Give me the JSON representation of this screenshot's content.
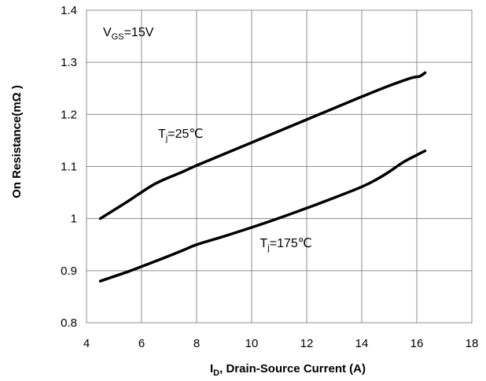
{
  "chart_data": {
    "type": "line",
    "title": "",
    "xlabel": {
      "main": "I",
      "sub": "D",
      "rest": ", Drain-Source Current (A)"
    },
    "ylabel": "On Resistance(mΩ )",
    "xlim": [
      4,
      18
    ],
    "ylim": [
      0.8,
      1.4
    ],
    "xticks": [
      4,
      6,
      8,
      10,
      12,
      14,
      16,
      18
    ],
    "yticks": [
      0.8,
      0.9,
      1.0,
      1.1,
      1.2,
      1.3,
      1.4
    ],
    "xtick_labels": [
      "4",
      "6",
      "8",
      "10",
      "12",
      "14",
      "16",
      "18"
    ],
    "ytick_labels": [
      "0.8",
      "0.9",
      "1",
      "1.1",
      "1.2",
      "1.3",
      "1.4"
    ],
    "grid": true,
    "annotations": [
      {
        "main": "V",
        "sub": "GS",
        "rest": "=15V",
        "x": 4.6,
        "y": 1.35
      },
      {
        "main": "T",
        "sub": "j",
        "rest": "=25℃",
        "x": 6.6,
        "y": 1.155
      },
      {
        "main": "T",
        "sub": "j",
        "rest": "=175℃",
        "x": 10.3,
        "y": 0.945
      }
    ],
    "series": [
      {
        "x": [
          4.5,
          5.5,
          6.5,
          7.5,
          8.0,
          9.0,
          10.0,
          11.0,
          12.0,
          13.0,
          14.0,
          15.0,
          15.8,
          16.1,
          16.3
        ],
        "y": [
          1.0,
          1.033,
          1.067,
          1.09,
          1.102,
          1.124,
          1.146,
          1.168,
          1.19,
          1.212,
          1.234,
          1.255,
          1.27,
          1.273,
          1.28
        ]
      },
      {
        "x": [
          4.5,
          5.5,
          6.5,
          7.5,
          8.0,
          9.0,
          10.0,
          11.0,
          12.0,
          13.0,
          14.0,
          14.5,
          15.0,
          15.5,
          16.0,
          16.3
        ],
        "y": [
          0.88,
          0.898,
          0.918,
          0.939,
          0.95,
          0.966,
          0.983,
          1.001,
          1.02,
          1.04,
          1.061,
          1.074,
          1.09,
          1.108,
          1.122,
          1.13
        ]
      }
    ]
  }
}
